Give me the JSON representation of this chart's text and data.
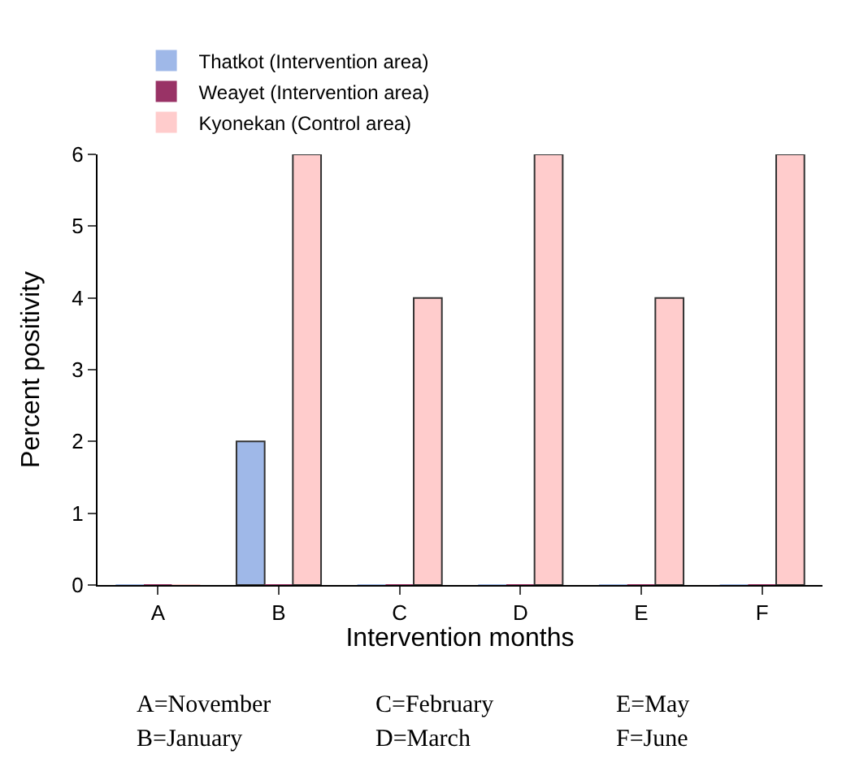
{
  "chart_data": {
    "type": "bar",
    "xlabel": "Intervention months",
    "ylabel": "Percent positivity",
    "categories": [
      "A",
      "B",
      "C",
      "D",
      "E",
      "F"
    ],
    "series": [
      {
        "name": "Thatkot (Intervention area)",
        "color": "#9fb8e8",
        "values": [
          0,
          2,
          0,
          0,
          0,
          0
        ]
      },
      {
        "name": "Weayet (Intervention area)",
        "color": "#993366",
        "values": [
          0,
          0,
          0,
          0,
          0,
          0
        ]
      },
      {
        "name": "Kyonekan (Control area)",
        "color": "#ffcccc",
        "values": [
          0,
          6,
          4,
          6,
          4,
          6
        ]
      }
    ],
    "ylim": [
      0,
      6
    ],
    "yticks": [
      0,
      1,
      2,
      3,
      4,
      5,
      6
    ],
    "grid": false,
    "legend": "top",
    "annotations": [
      "A=November",
      "B=January",
      "C=February",
      "D=March",
      "E=May",
      "F=June"
    ]
  }
}
